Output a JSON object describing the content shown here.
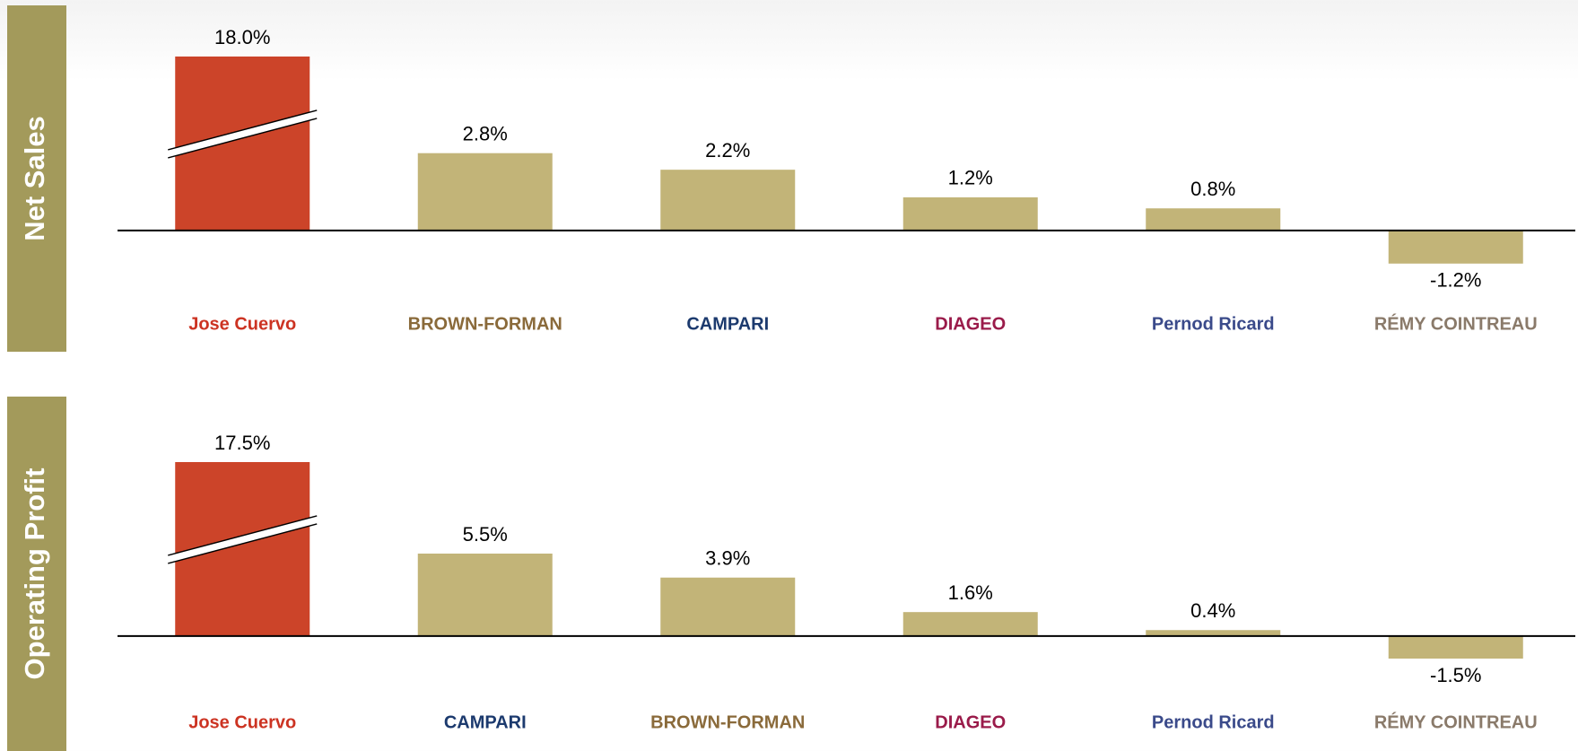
{
  "chart_data": [
    {
      "type": "bar",
      "title": "Net Sales",
      "categories": [
        "Jose Cuervo",
        "BROWN-FORMAN",
        "CAMPARI",
        "DIAGEO",
        "Pernod Ricard",
        "RÉMY COINTREAU"
      ],
      "category_colors": [
        "#cc3322",
        "#8a6a3a",
        "#1c3a6e",
        "#9a1b4a",
        "#3a4a8a",
        "#8a7a6a"
      ],
      "values": [
        18.0,
        2.8,
        2.2,
        1.2,
        0.8,
        -1.2
      ],
      "value_labels": [
        "18.0%",
        "2.8%",
        "2.2%",
        "1.2%",
        "0.8%",
        "-1.2%"
      ],
      "colors": [
        "#cc4429",
        "#c2b478",
        "#c2b478",
        "#c2b478",
        "#c2b478",
        "#c2b478"
      ],
      "ylim": [
        -1.5,
        6.3
      ],
      "axis_break": true
    },
    {
      "type": "bar",
      "title": "Operating Profit",
      "categories": [
        "Jose Cuervo",
        "CAMPARI",
        "BROWN-FORMAN",
        "DIAGEO",
        "Pernod Ricard",
        "RÉMY COINTREAU"
      ],
      "category_colors": [
        "#cc3322",
        "#1c3a6e",
        "#8a6a3a",
        "#9a1b4a",
        "#3a4a8a",
        "#8a7a6a"
      ],
      "values": [
        17.5,
        5.5,
        3.9,
        1.6,
        0.4,
        -1.5
      ],
      "value_labels": [
        "17.5%",
        "5.5%",
        "3.9%",
        "1.6%",
        "0.4%",
        "-1.5%"
      ],
      "colors": [
        "#cc4429",
        "#c2b478",
        "#c2b478",
        "#c2b478",
        "#c2b478",
        "#c2b478"
      ],
      "ylim": [
        -1.5,
        11.6
      ],
      "axis_break": true
    }
  ]
}
